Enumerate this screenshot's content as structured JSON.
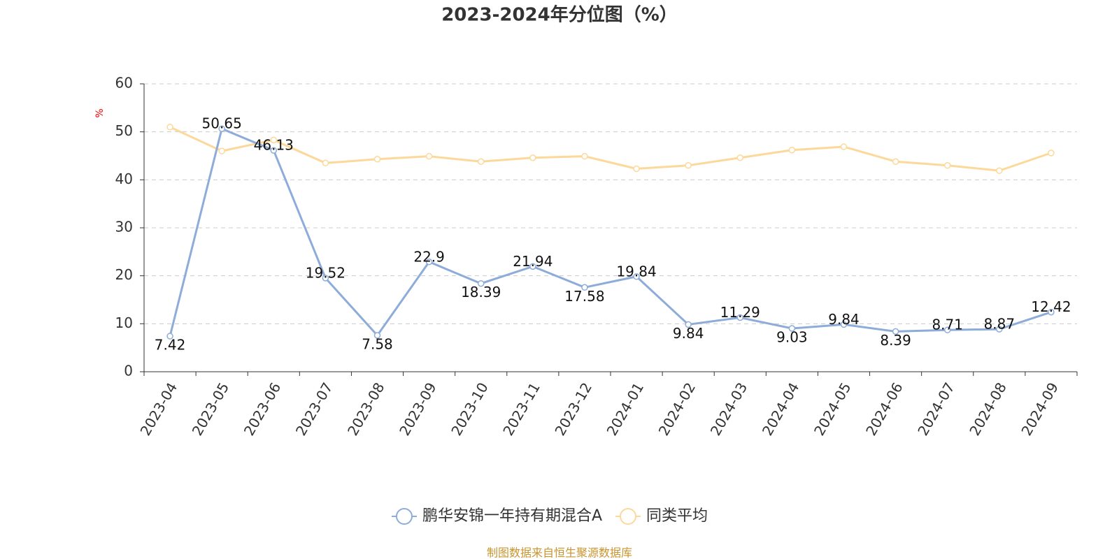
{
  "chart_data": {
    "type": "line",
    "title": "2023-2024年分位图（%）",
    "y_label": "%",
    "source": "制图数据来自恒生聚源数据库",
    "categories": [
      "2023-04",
      "2023-05",
      "2023-06",
      "2023-07",
      "2023-08",
      "2023-09",
      "2023-10",
      "2023-11",
      "2023-12",
      "2024-01",
      "2024-02",
      "2024-03",
      "2024-04",
      "2024-05",
      "2024-06",
      "2024-07",
      "2024-08",
      "2024-09"
    ],
    "series": [
      {
        "name": "鹏华安锦一年持有期混合A",
        "color": "#8eacd9",
        "show_labels": true,
        "values": [
          7.42,
          50.65,
          46.13,
          19.52,
          7.58,
          22.9,
          18.39,
          21.94,
          17.58,
          19.84,
          9.84,
          11.29,
          9.03,
          9.84,
          8.39,
          8.71,
          8.87,
          12.42
        ]
      },
      {
        "name": "同类平均",
        "color": "#fcd99a",
        "show_labels": false,
        "values": [
          51.0,
          46.0,
          48.3,
          43.5,
          44.3,
          44.9,
          43.8,
          44.6,
          44.9,
          42.3,
          43.0,
          44.6,
          46.2,
          46.9,
          43.8,
          43.0,
          41.9,
          45.6
        ]
      }
    ],
    "ylim": [
      0,
      60
    ],
    "yticks": [
      0,
      10,
      20,
      30,
      40,
      50,
      60
    ],
    "grid": true,
    "legend": "bottom"
  }
}
